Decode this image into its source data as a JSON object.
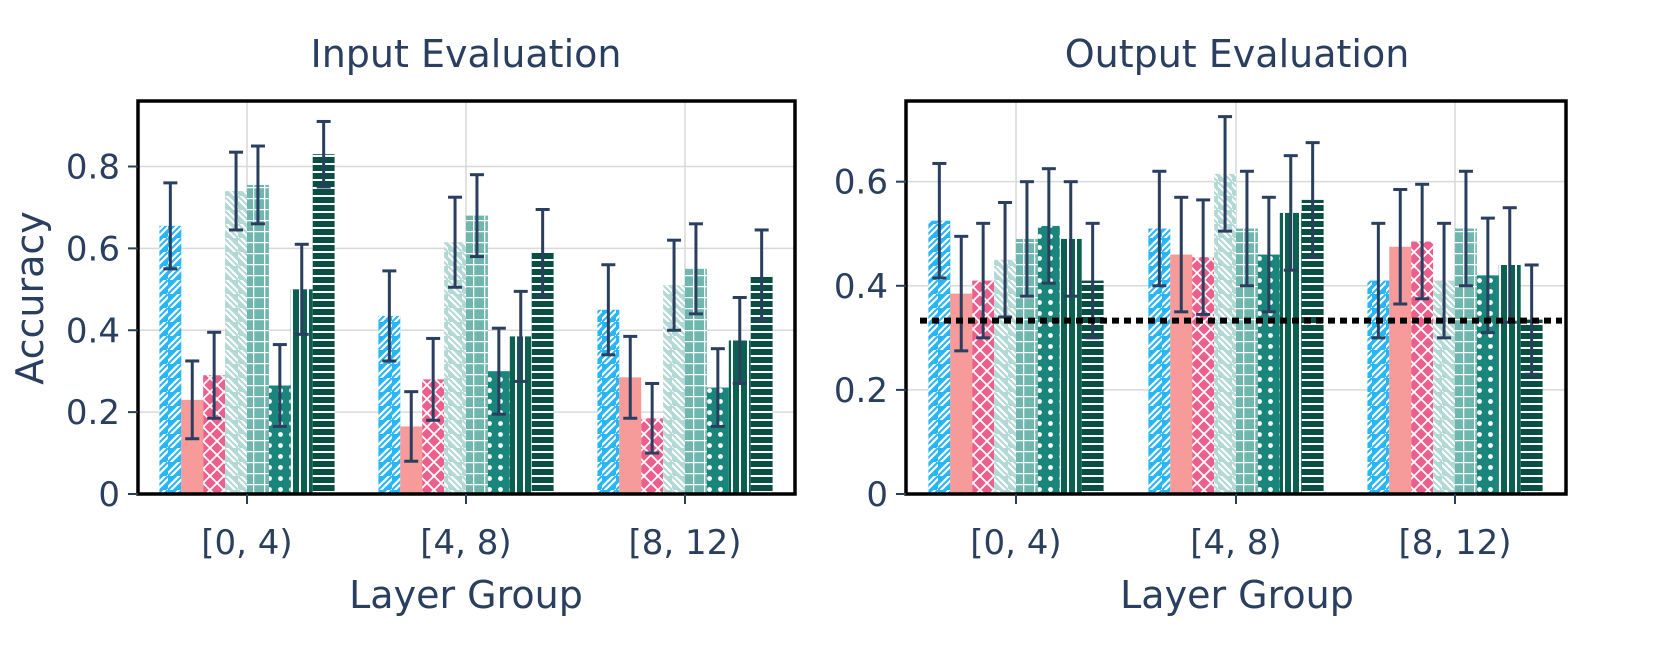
{
  "chart_data": [
    {
      "type": "bar",
      "title": "Input Evaluation",
      "xlabel": "Layer Group",
      "ylabel": "Accuracy",
      "categories": [
        "[0, 4)",
        "[4, 8)",
        "[8, 12)"
      ],
      "ylim": [
        0,
        0.96
      ],
      "yticks": [
        0,
        0.2,
        0.4,
        0.6,
        0.8
      ],
      "ytick_labels": [
        "0",
        "0.2",
        "0.4",
        "0.6",
        "0.8"
      ],
      "reference_line": null,
      "series": [
        {
          "values": [
            0.655,
            0.435,
            0.45
          ],
          "errors": [
            0.105,
            0.11,
            0.11
          ],
          "color": "#29b6f6",
          "pattern": "diag-right"
        },
        {
          "values": [
            0.23,
            0.165,
            0.285
          ],
          "errors": [
            0.095,
            0.085,
            0.1
          ],
          "color": "#f69a9a",
          "pattern": "none"
        },
        {
          "values": [
            0.29,
            0.28,
            0.185
          ],
          "errors": [
            0.105,
            0.1,
            0.085
          ],
          "color": "#ec5f8d",
          "pattern": "crosshatch"
        },
        {
          "values": [
            0.74,
            0.615,
            0.51
          ],
          "errors": [
            0.095,
            0.11,
            0.11
          ],
          "color": "#b3d9d5",
          "pattern": "diag-left"
        },
        {
          "values": [
            0.755,
            0.68,
            0.55
          ],
          "errors": [
            0.095,
            0.1,
            0.11
          ],
          "color": "#6fb6ae",
          "pattern": "grid"
        },
        {
          "values": [
            0.265,
            0.3,
            0.26
          ],
          "errors": [
            0.1,
            0.105,
            0.095
          ],
          "color": "#1a857a",
          "pattern": "dots"
        },
        {
          "values": [
            0.5,
            0.385,
            0.375
          ],
          "errors": [
            0.11,
            0.11,
            0.105
          ],
          "color": "#0c6050",
          "pattern": "vertical"
        },
        {
          "values": [
            0.83,
            0.59,
            0.535
          ],
          "errors": [
            0.08,
            0.105,
            0.11
          ],
          "color": "#0a4f44",
          "pattern": "horizontal"
        }
      ]
    },
    {
      "type": "bar",
      "title": "Output Evaluation",
      "xlabel": "Layer Group",
      "ylabel": "",
      "categories": [
        "[0, 4)",
        "[4, 8)",
        "[8, 12)"
      ],
      "ylim": [
        0,
        0.755
      ],
      "yticks": [
        0,
        0.2,
        0.4,
        0.6
      ],
      "ytick_labels": [
        "0",
        "0.2",
        "0.4",
        "0.6"
      ],
      "reference_line": 0.333,
      "series": [
        {
          "values": [
            0.525,
            0.51,
            0.41
          ],
          "errors": [
            0.11,
            0.11,
            0.11
          ],
          "color": "#29b6f6",
          "pattern": "diag-right"
        },
        {
          "values": [
            0.385,
            0.46,
            0.475
          ],
          "errors": [
            0.11,
            0.11,
            0.11
          ],
          "color": "#f69a9a",
          "pattern": "none"
        },
        {
          "values": [
            0.41,
            0.455,
            0.485
          ],
          "errors": [
            0.11,
            0.11,
            0.11
          ],
          "color": "#ec5f8d",
          "pattern": "crosshatch"
        },
        {
          "values": [
            0.45,
            0.615,
            0.41
          ],
          "errors": [
            0.11,
            0.11,
            0.11
          ],
          "color": "#b3d9d5",
          "pattern": "diag-left"
        },
        {
          "values": [
            0.49,
            0.51,
            0.51
          ],
          "errors": [
            0.11,
            0.11,
            0.11
          ],
          "color": "#6fb6ae",
          "pattern": "grid"
        },
        {
          "values": [
            0.515,
            0.46,
            0.42
          ],
          "errors": [
            0.11,
            0.11,
            0.11
          ],
          "color": "#1a857a",
          "pattern": "dots"
        },
        {
          "values": [
            0.49,
            0.54,
            0.44
          ],
          "errors": [
            0.11,
            0.11,
            0.11
          ],
          "color": "#0c6050",
          "pattern": "vertical"
        },
        {
          "values": [
            0.41,
            0.565,
            0.335
          ],
          "errors": [
            0.11,
            0.11,
            0.105
          ],
          "color": "#0a4f44",
          "pattern": "horizontal"
        }
      ]
    }
  ]
}
